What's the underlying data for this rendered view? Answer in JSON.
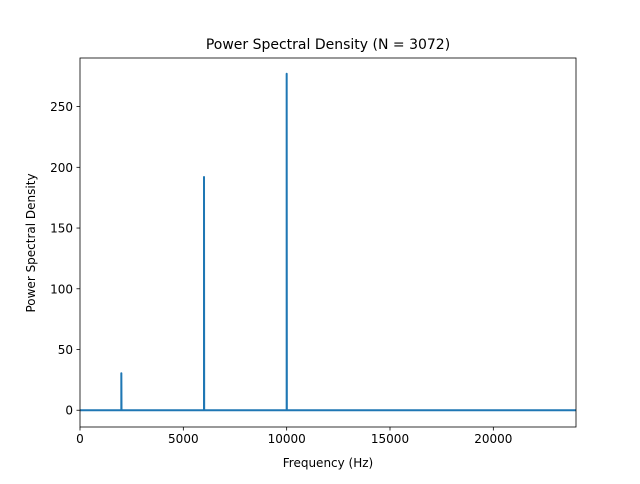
{
  "chart_data": {
    "type": "line",
    "title": "Power Spectral Density (N = 3072)",
    "xlabel": "Frequency (Hz)",
    "ylabel": "Power Spectral Density",
    "xlim": [
      0,
      24000
    ],
    "ylim": [
      -13.8,
      290
    ],
    "xticks": [
      0,
      5000,
      10000,
      15000,
      20000
    ],
    "yticks": [
      0,
      50,
      100,
      150,
      200,
      250
    ],
    "grid": false,
    "legend": "none",
    "series": [
      {
        "color": "#1f77b4",
        "points": [
          [
            0,
            0
          ],
          [
            2000,
            0
          ],
          [
            2000,
            30.5
          ],
          [
            2008,
            0
          ],
          [
            6000,
            0
          ],
          [
            6000,
            192
          ],
          [
            6008,
            0
          ],
          [
            10000,
            0
          ],
          [
            10000,
            277
          ],
          [
            10008,
            0
          ],
          [
            24000,
            0
          ]
        ]
      }
    ]
  }
}
